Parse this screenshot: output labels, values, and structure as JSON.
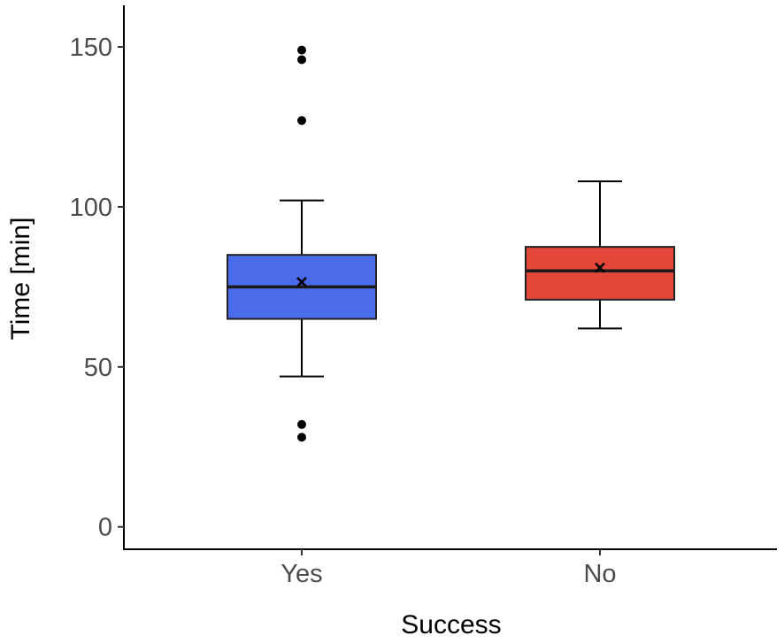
{
  "chart_data": {
    "type": "box",
    "title": "",
    "xlabel": "Success",
    "ylabel": "Time [min]",
    "categories": [
      "Yes",
      "No"
    ],
    "ylim": [
      -7,
      163
    ],
    "yticks": [
      0,
      50,
      100,
      150
    ],
    "ytick_labels": [
      "0",
      "50",
      "100",
      "150"
    ],
    "grid": false,
    "legend": "none",
    "boxes": [
      {
        "category": "Yes",
        "color": "#4a6bea",
        "whisker_low": 47,
        "q1": 65,
        "median": 75,
        "q3": 85,
        "whisker_high": 102,
        "mean": 76.5,
        "outliers": [
          149,
          146,
          127,
          32,
          28
        ]
      },
      {
        "category": "No",
        "color": "#e2473a",
        "whisker_low": 62,
        "q1": 71,
        "median": 80,
        "q3": 87.5,
        "whisker_high": 108,
        "mean": 81,
        "outliers": []
      }
    ]
  }
}
